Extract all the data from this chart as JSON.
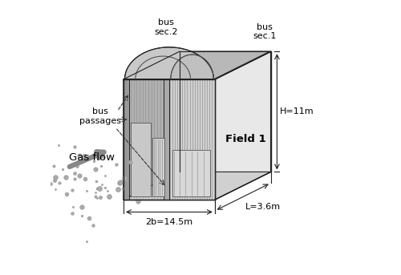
{
  "bg_color": "#ffffff",
  "right_face_color": "#e8e8e8",
  "top_face_color": "#c8c8c8",
  "front_face_color": "#d4d4d4",
  "inner_face_color": "#b8b8b8",
  "stripe_color": "#888888",
  "wall_color": "#aaaaaa",
  "panel_color": "#c0c0c0",
  "dark_line": "#222222",
  "arrow_color": "#888888",
  "label_bus_sec2": "bus\nsec.2",
  "label_bus_sec1": "bus\nsec.1",
  "label_bus_passages": "bus\npassages",
  "label_gas_flow": "Gas flow",
  "label_field1": "Field 1",
  "label_H": "H=11m",
  "label_2b": "2b=14.5m",
  "label_L": "L=3.6m"
}
